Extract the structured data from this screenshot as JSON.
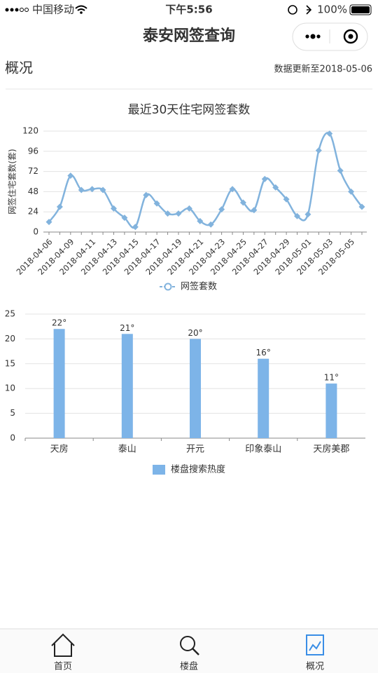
{
  "status_bar": {
    "carrier": "中国移动",
    "time": "下午5:56",
    "battery": "100%"
  },
  "header": {
    "title": "泰安网签查询"
  },
  "section": {
    "title": "概况",
    "updated": "数据更新至2018-05-06"
  },
  "chart_data": [
    {
      "type": "line",
      "title": "最近30天住宅网签套数",
      "y_label": "网签住宅套数(套)",
      "categories": [
        "2018-04-06",
        null,
        "2018-04-09",
        null,
        "2018-04-11",
        null,
        "2018-04-13",
        null,
        "2018-04-15",
        null,
        "2018-04-17",
        null,
        "2018-04-19",
        null,
        "2018-04-21",
        null,
        "2018-04-23",
        null,
        "2018-04-25",
        null,
        "2018-04-27",
        null,
        "2018-04-29",
        null,
        "2018-05-01",
        null,
        "2018-05-03",
        null,
        "2018-05-05",
        null
      ],
      "series": [
        {
          "name": "网签套数",
          "color": "#82b3dd",
          "values": [
            12,
            30,
            67,
            50,
            51,
            50,
            28,
            17,
            6,
            44,
            34,
            22,
            22,
            28,
            13,
            9,
            27,
            51,
            35,
            26,
            63,
            53,
            39,
            19,
            21,
            97,
            117,
            73,
            48,
            30
          ]
        }
      ],
      "ylim": [
        0,
        120
      ],
      "yticks": [
        0,
        24,
        48,
        72,
        96,
        120
      ],
      "grid": true,
      "legend": "bottom"
    },
    {
      "type": "bar",
      "categories": [
        "天房",
        "泰山",
        "开元",
        "印象泰山",
        "天房美郡"
      ],
      "series": [
        {
          "name": "楼盘搜索热度",
          "color": "#7db4e8",
          "values": [
            22,
            21,
            20,
            16,
            11
          ],
          "value_labels": [
            "22°",
            "21°",
            "20°",
            "16°",
            "11°"
          ]
        }
      ],
      "ylim": [
        0,
        25
      ],
      "yticks": [
        0,
        5,
        10,
        15,
        20,
        25
      ],
      "grid": true,
      "legend": "bottom"
    }
  ],
  "tab_bar": {
    "items": [
      "首页",
      "楼盘",
      "概况"
    ]
  }
}
